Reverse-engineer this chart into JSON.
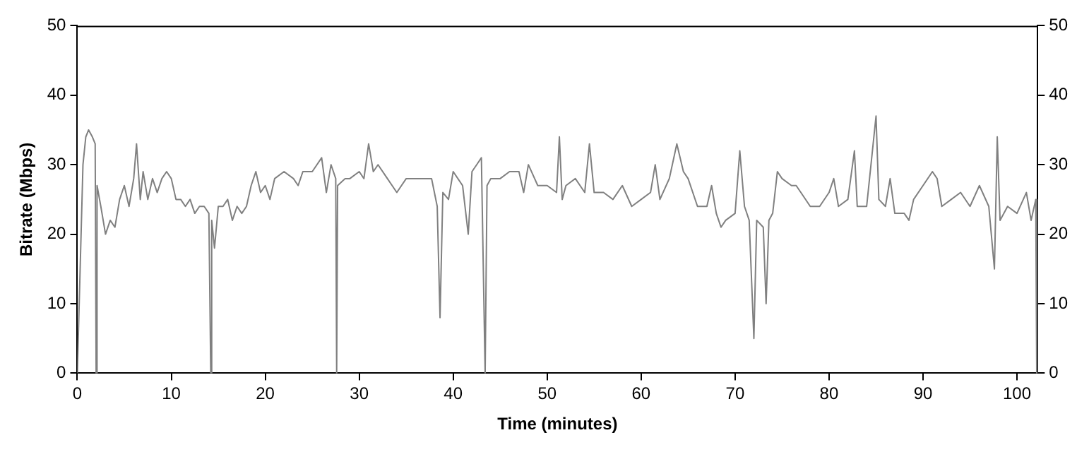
{
  "chart_data": {
    "type": "line",
    "xlabel": "Time (minutes)",
    "ylabel": "Bitrate (Mbps)",
    "xlim": [
      0,
      102.2
    ],
    "xticks": [
      0,
      10,
      20,
      30,
      40,
      50,
      60,
      70,
      80,
      90,
      100
    ],
    "ylim": [
      0,
      50
    ],
    "yticks": [
      0,
      10,
      20,
      30,
      40,
      50
    ],
    "y2lim": [
      0,
      50
    ],
    "y2ticks": [
      0,
      10,
      20,
      30,
      40,
      50
    ],
    "grid": false,
    "legend": false,
    "marker": "none",
    "line_style": "solid",
    "series": [
      {
        "color": "#808080",
        "x": [
          0,
          0.3,
          0.6,
          0.9,
          1.2,
          1.6,
          1.9,
          2.0,
          2.1,
          2.5,
          3,
          3.5,
          4,
          4.5,
          5,
          5.5,
          6,
          6.3,
          6.7,
          7,
          7.5,
          8,
          8.5,
          9,
          9.5,
          10,
          10.5,
          11,
          11.5,
          12,
          12.5,
          13,
          13.5,
          14,
          14.2,
          14.3,
          14.6,
          15,
          15.5,
          16,
          16.5,
          17,
          17.5,
          18,
          18.5,
          19,
          19.5,
          20,
          20.5,
          21,
          22,
          23,
          23.5,
          24,
          25,
          26,
          26.5,
          27,
          27.5,
          27.6,
          27.7,
          28.5,
          29,
          30,
          30.5,
          31,
          31.5,
          32,
          33,
          34,
          35,
          36,
          37,
          37.7,
          38.3,
          38.6,
          38.9,
          39.5,
          40,
          41,
          41.6,
          42,
          42.5,
          43,
          43.4,
          43.6,
          44,
          45,
          46,
          47,
          47.5,
          48,
          49,
          50,
          51,
          51.3,
          51.6,
          52,
          53,
          54,
          54.5,
          55,
          56,
          57,
          58,
          59,
          60,
          61,
          61.5,
          62,
          63,
          63.8,
          64.5,
          65,
          66,
          67,
          67.5,
          68,
          68.5,
          69,
          70,
          70.5,
          71,
          71.5,
          72,
          72.3,
          73,
          73.3,
          73.6,
          74,
          74.5,
          75,
          76,
          76.5,
          77,
          78,
          79,
          80,
          80.5,
          81,
          82,
          82.7,
          83,
          84,
          85,
          85.3,
          86,
          86.5,
          87,
          88,
          88.5,
          89,
          90,
          91,
          91.5,
          92,
          93,
          94,
          95,
          96,
          97,
          97.6,
          97.9,
          98.2,
          99,
          100,
          101,
          101.5,
          102,
          102.1
        ],
        "values": [
          0,
          15,
          30,
          34,
          35,
          34,
          33,
          0,
          27,
          24,
          20,
          22,
          21,
          25,
          27,
          24,
          28,
          33,
          25,
          29,
          25,
          28,
          26,
          28,
          29,
          28,
          25,
          25,
          24,
          25,
          23,
          24,
          24,
          23,
          0,
          22,
          18,
          24,
          24,
          25,
          22,
          24,
          23,
          24,
          27,
          29,
          26,
          27,
          25,
          28,
          29,
          28,
          27,
          29,
          29,
          31,
          26,
          30,
          28,
          0,
          27,
          28,
          28,
          29,
          28,
          33,
          29,
          30,
          28,
          26,
          28,
          28,
          28,
          28,
          24,
          8,
          26,
          25,
          29,
          27,
          20,
          29,
          30,
          31,
          0,
          27,
          28,
          28,
          29,
          29,
          26,
          30,
          27,
          27,
          26,
          34,
          25,
          27,
          28,
          26,
          33,
          26,
          26,
          25,
          27,
          24,
          25,
          26,
          30,
          25,
          28,
          33,
          29,
          28,
          24,
          24,
          27,
          23,
          21,
          22,
          23,
          32,
          24,
          22,
          5,
          22,
          21,
          10,
          22,
          23,
          29,
          28,
          27,
          27,
          26,
          24,
          24,
          26,
          28,
          24,
          25,
          32,
          24,
          24,
          37,
          25,
          24,
          28,
          23,
          23,
          22,
          25,
          27,
          29,
          28,
          24,
          25,
          26,
          24,
          27,
          24,
          15,
          34,
          22,
          24,
          23,
          26,
          22,
          25,
          0
        ]
      }
    ]
  }
}
